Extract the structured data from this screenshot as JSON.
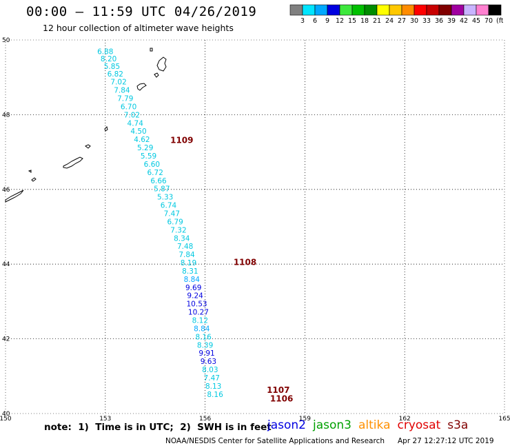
{
  "header": {
    "title": "00:00 – 11:59 UTC 04/26/2019",
    "subtitle": "12 hour collection of altimeter wave heights"
  },
  "color_scale": {
    "unit_label": "(ft)",
    "bins": [
      {
        "label": "3",
        "color": "#808080"
      },
      {
        "label": "6",
        "color": "#00e5ff"
      },
      {
        "label": "9",
        "color": "#00a8ff"
      },
      {
        "label": "12",
        "color": "#0000e0"
      },
      {
        "label": "15",
        "color": "#3de83d"
      },
      {
        "label": "18",
        "color": "#00c000"
      },
      {
        "label": "21",
        "color": "#008c00"
      },
      {
        "label": "24",
        "color": "#ffff00"
      },
      {
        "label": "27",
        "color": "#ffc800"
      },
      {
        "label": "30",
        "color": "#ff8c00"
      },
      {
        "label": "33",
        "color": "#ff0000"
      },
      {
        "label": "36",
        "color": "#c80000"
      },
      {
        "label": "39",
        "color": "#800000"
      },
      {
        "label": "42",
        "color": "#a000a0"
      },
      {
        "label": "45",
        "color": "#c8b4ff"
      },
      {
        "label": "70",
        "color": "#ff80d0"
      },
      {
        "label": "",
        "color": "#000000"
      }
    ]
  },
  "chart_data": {
    "type": "scatter",
    "title": "00:00 – 11:59 UTC 04/26/2019",
    "xlim": [
      150,
      165
    ],
    "ylim": [
      40,
      50
    ],
    "x_ticks": [
      "150",
      "153",
      "156",
      "159",
      "162",
      "165"
    ],
    "y_ticks": [
      "40",
      "42",
      "44",
      "46",
      "48",
      "50"
    ],
    "grid": true,
    "points": [
      {
        "lon": 153.0,
        "lat": 49.7,
        "v": "6.88",
        "c": "#00c8e0"
      },
      {
        "lon": 153.1,
        "lat": 49.5,
        "v": "8.20",
        "c": "#00c8e0"
      },
      {
        "lon": 153.2,
        "lat": 49.3,
        "v": "5.85",
        "c": "#00c8e0"
      },
      {
        "lon": 153.3,
        "lat": 49.1,
        "v": "6.82",
        "c": "#00c8e0"
      },
      {
        "lon": 153.4,
        "lat": 48.88,
        "v": "7.02",
        "c": "#00c8e0"
      },
      {
        "lon": 153.5,
        "lat": 48.66,
        "v": "7.84",
        "c": "#00c8e0"
      },
      {
        "lon": 153.6,
        "lat": 48.44,
        "v": "7.79",
        "c": "#00c8e0"
      },
      {
        "lon": 153.7,
        "lat": 48.22,
        "v": "6.70",
        "c": "#00c8e0"
      },
      {
        "lon": 153.8,
        "lat": 48.0,
        "v": "7.02",
        "c": "#00c8e0"
      },
      {
        "lon": 153.9,
        "lat": 47.78,
        "v": "4.74",
        "c": "#00c8e0"
      },
      {
        "lon": 154.0,
        "lat": 47.56,
        "v": "4.50",
        "c": "#00c8e0"
      },
      {
        "lon": 154.1,
        "lat": 47.34,
        "v": "4.62",
        "c": "#00c8e0"
      },
      {
        "lon": 154.2,
        "lat": 47.12,
        "v": "5.29",
        "c": "#00c8e0"
      },
      {
        "lon": 154.3,
        "lat": 46.9,
        "v": "5.59",
        "c": "#00c8e0"
      },
      {
        "lon": 154.4,
        "lat": 46.68,
        "v": "6.60",
        "c": "#00c8e0"
      },
      {
        "lon": 154.5,
        "lat": 46.46,
        "v": "6.72",
        "c": "#00c8e0"
      },
      {
        "lon": 154.6,
        "lat": 46.24,
        "v": "6.66",
        "c": "#00c8e0"
      },
      {
        "lon": 154.7,
        "lat": 46.02,
        "v": "5.87",
        "c": "#00c8e0"
      },
      {
        "lon": 154.8,
        "lat": 45.8,
        "v": "5.33",
        "c": "#00c8e0"
      },
      {
        "lon": 154.9,
        "lat": 45.58,
        "v": "6.74",
        "c": "#00c8e0"
      },
      {
        "lon": 155.0,
        "lat": 45.36,
        "v": "7.47",
        "c": "#00c8e0"
      },
      {
        "lon": 155.1,
        "lat": 45.14,
        "v": "6.79",
        "c": "#00c8e0"
      },
      {
        "lon": 155.2,
        "lat": 44.92,
        "v": "7.32",
        "c": "#00c8e0"
      },
      {
        "lon": 155.3,
        "lat": 44.7,
        "v": "8.34",
        "c": "#00c8e0"
      },
      {
        "lon": 155.4,
        "lat": 44.48,
        "v": "7.48",
        "c": "#00c8e0"
      },
      {
        "lon": 155.45,
        "lat": 44.26,
        "v": "7.84",
        "c": "#00c8e0"
      },
      {
        "lon": 155.5,
        "lat": 44.04,
        "v": "8.19",
        "c": "#00c8e0"
      },
      {
        "lon": 155.55,
        "lat": 43.82,
        "v": "8.31",
        "c": "#00c8e0"
      },
      {
        "lon": 155.6,
        "lat": 43.6,
        "v": "8.84",
        "c": "#00a8ff"
      },
      {
        "lon": 155.65,
        "lat": 43.38,
        "v": "9.69",
        "c": "#0000e0"
      },
      {
        "lon": 155.7,
        "lat": 43.16,
        "v": "9.24",
        "c": "#0000e0"
      },
      {
        "lon": 155.75,
        "lat": 42.94,
        "v": "10.53",
        "c": "#0000e0"
      },
      {
        "lon": 155.8,
        "lat": 42.72,
        "v": "10.27",
        "c": "#0000e0"
      },
      {
        "lon": 155.85,
        "lat": 42.5,
        "v": "8.12",
        "c": "#00c8e0"
      },
      {
        "lon": 155.9,
        "lat": 42.28,
        "v": "8.84",
        "c": "#00a8ff"
      },
      {
        "lon": 155.95,
        "lat": 42.06,
        "v": "8.16",
        "c": "#00c8e0"
      },
      {
        "lon": 156.0,
        "lat": 41.84,
        "v": "8.39",
        "c": "#00c8e0"
      },
      {
        "lon": 156.05,
        "lat": 41.62,
        "v": "9.91",
        "c": "#0000e0"
      },
      {
        "lon": 156.1,
        "lat": 41.4,
        "v": "9.63",
        "c": "#0000e0"
      },
      {
        "lon": 156.15,
        "lat": 41.18,
        "v": "8.03",
        "c": "#00c8e0"
      },
      {
        "lon": 156.2,
        "lat": 40.96,
        "v": "7.47",
        "c": "#00c8e0"
      },
      {
        "lon": 156.25,
        "lat": 40.74,
        "v": "8.13",
        "c": "#00c8e0"
      },
      {
        "lon": 156.3,
        "lat": 40.52,
        "v": "8.16",
        "c": "#00c8e0"
      }
    ],
    "labels": [
      {
        "lon": 155.3,
        "lat": 47.32,
        "text": "1109",
        "c": "#800000"
      },
      {
        "lon": 157.2,
        "lat": 44.05,
        "text": "1108",
        "c": "#800000"
      },
      {
        "lon": 158.2,
        "lat": 40.63,
        "text": "1107",
        "c": "#800000"
      },
      {
        "lon": 158.3,
        "lat": 40.4,
        "text": "1106",
        "c": "#800000"
      }
    ]
  },
  "footer": {
    "note": "note:  1)  Time is in UTC;  2)  SWH is in feet",
    "satellites": [
      {
        "name": "jason2",
        "color": "#0000e0"
      },
      {
        "name": "jason3",
        "color": "#00a000"
      },
      {
        "name": "altika",
        "color": "#ff9000"
      },
      {
        "name": "cryosat",
        "color": "#e00000"
      },
      {
        "name": "s3a",
        "color": "#800000"
      }
    ],
    "credit": "NOAA/NESDIS Center for Satellite Applications and Research",
    "timestamp": "Apr 27 12:27:12 UTC 2019"
  }
}
